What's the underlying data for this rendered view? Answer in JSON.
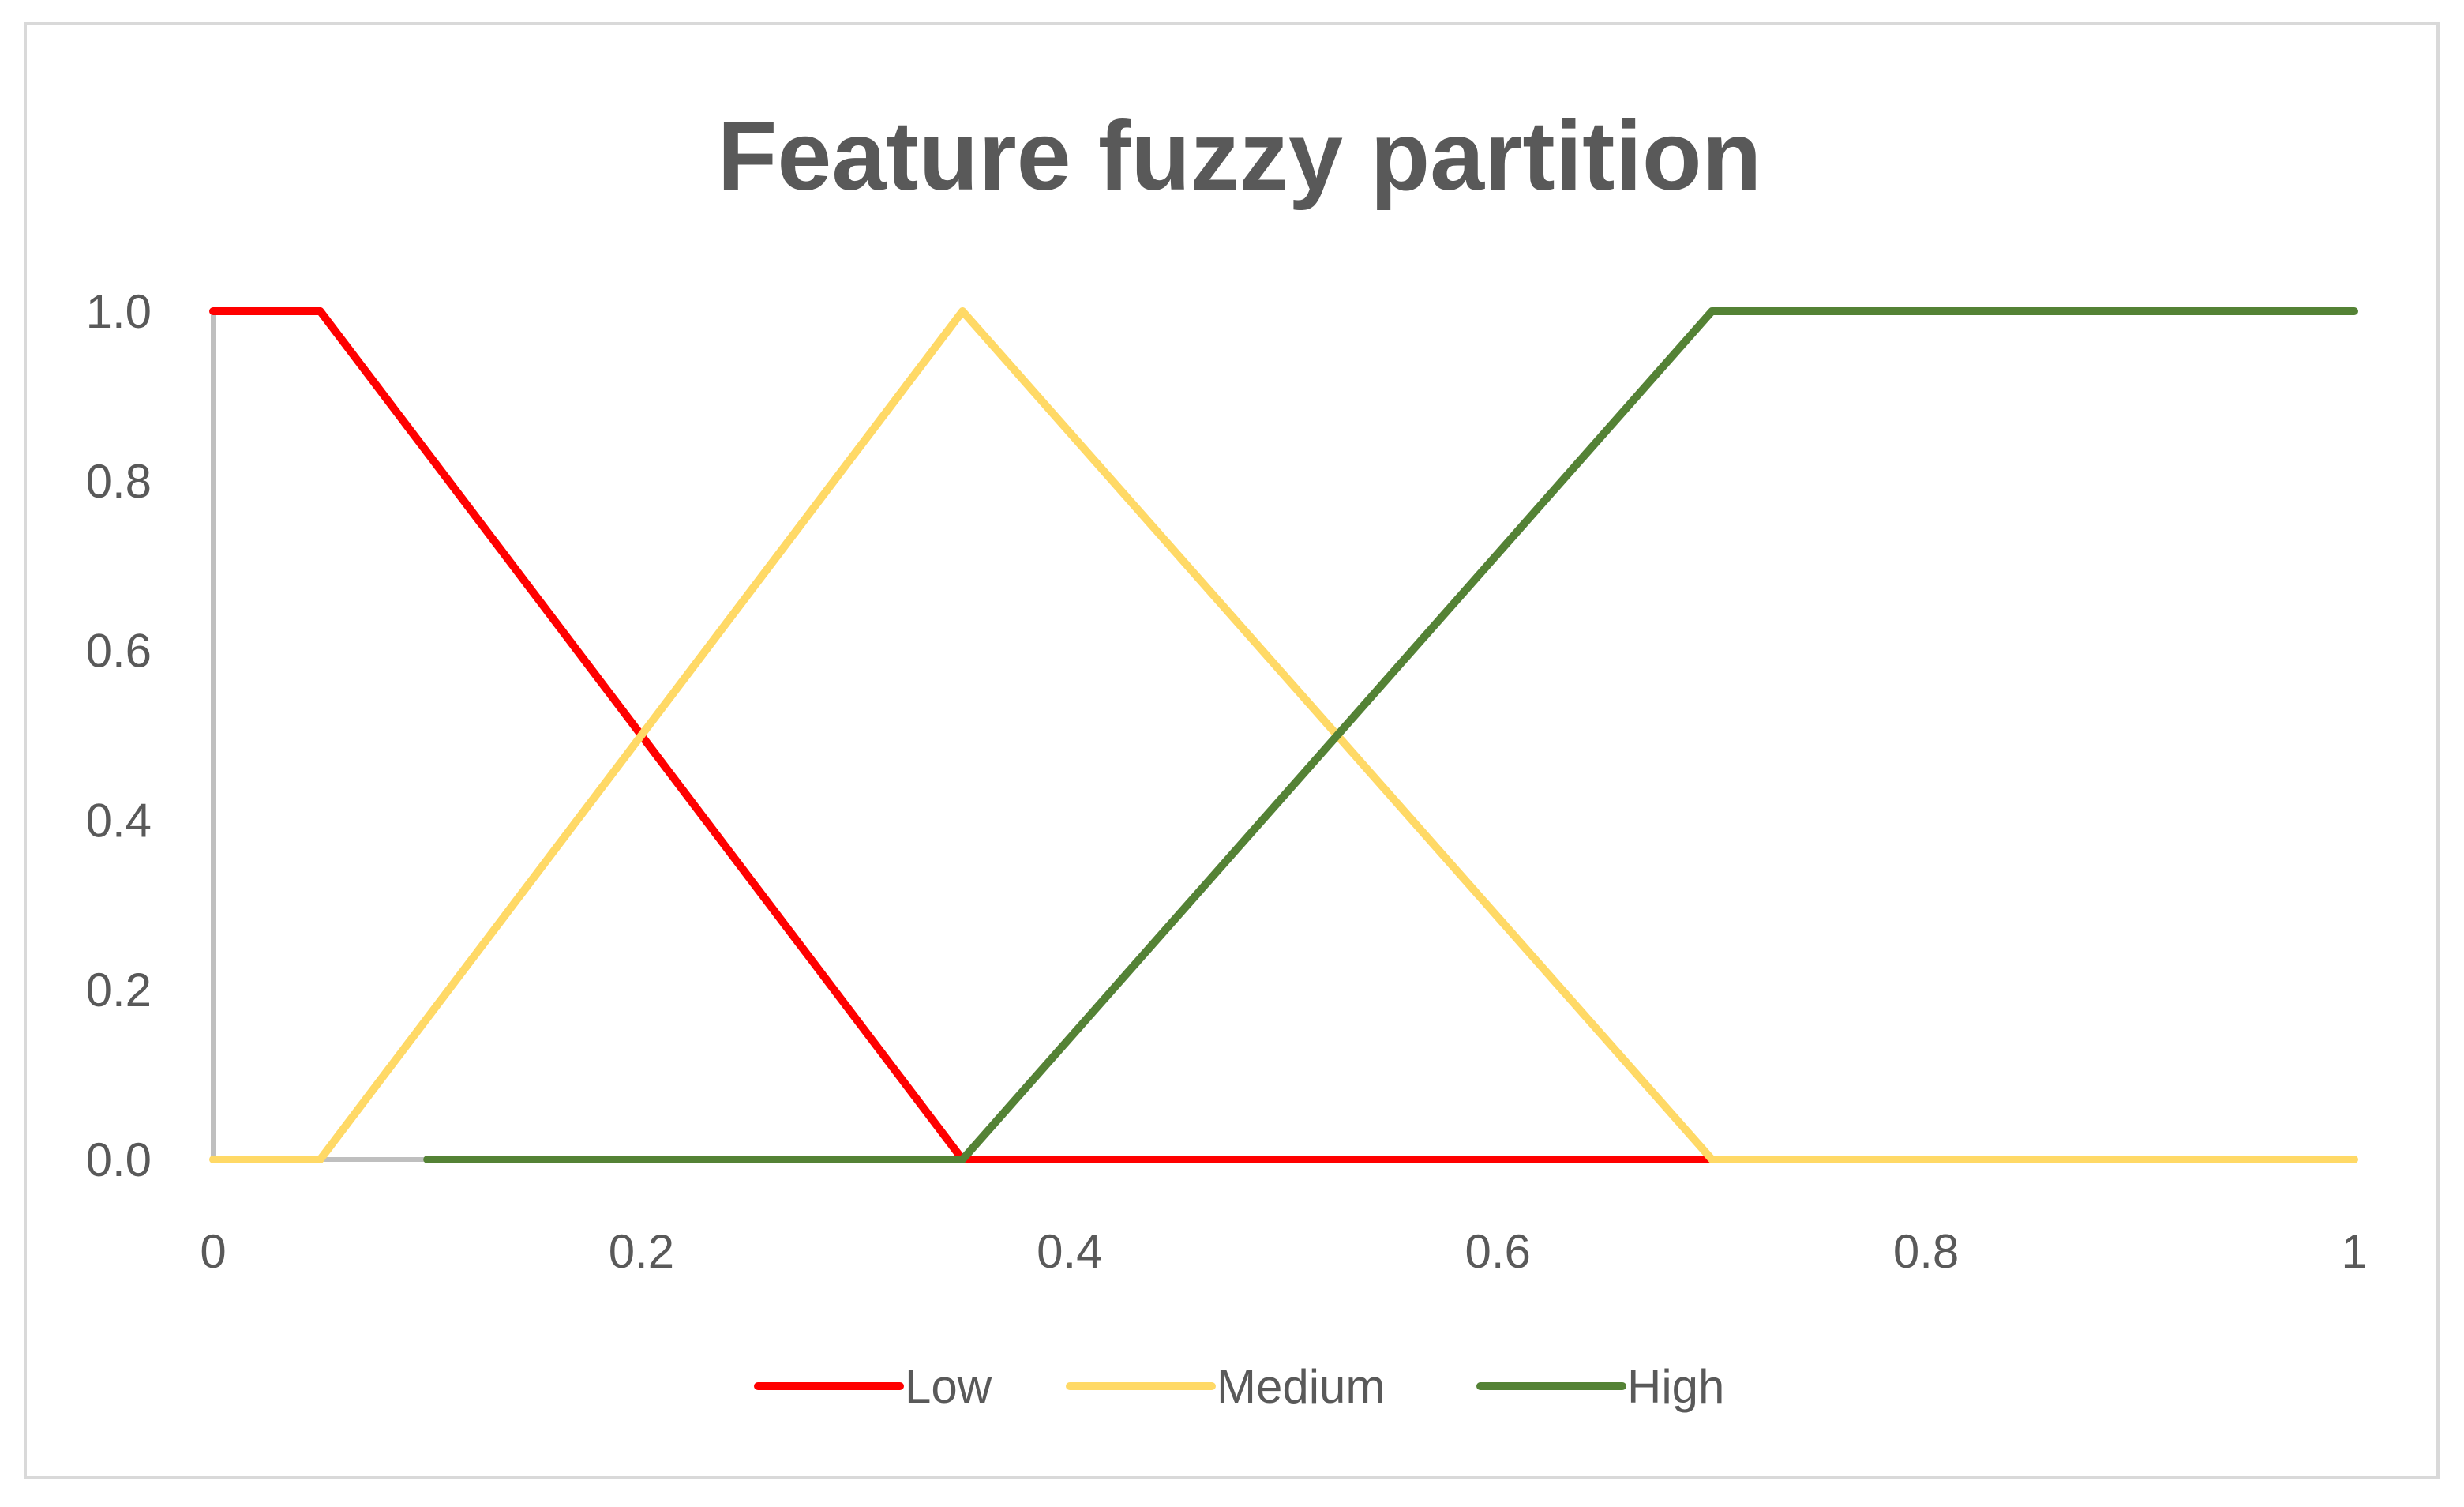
{
  "chart_data": {
    "type": "line",
    "title": "Feature fuzzy partition",
    "xlabel": "",
    "ylabel": "",
    "xlim": [
      0,
      1
    ],
    "ylim": [
      0,
      1
    ],
    "x_ticks": [
      "0",
      "0.2",
      "0.4",
      "0.6",
      "0.8",
      "1"
    ],
    "x_tick_values": [
      0,
      0.2,
      0.4,
      0.6,
      0.8,
      1
    ],
    "y_ticks": [
      "0.0",
      "0.2",
      "0.4",
      "0.6",
      "0.8",
      "1.0"
    ],
    "y_tick_values": [
      0,
      0.2,
      0.4,
      0.6,
      0.8,
      1.0
    ],
    "grid": false,
    "legend_position": "bottom",
    "axis_color": "#bfbfbf",
    "series": [
      {
        "name": "Low",
        "color": "#ff0000",
        "points": [
          [
            0,
            1
          ],
          [
            0.05,
            1
          ],
          [
            0.35,
            0
          ],
          [
            0.7,
            0
          ]
        ]
      },
      {
        "name": "Medium",
        "color": "#ffd966",
        "points": [
          [
            0,
            0
          ],
          [
            0.05,
            0
          ],
          [
            0.35,
            1
          ],
          [
            0.7,
            0
          ],
          [
            1,
            0
          ]
        ]
      },
      {
        "name": "High",
        "color": "#548235",
        "points": [
          [
            0.1,
            0
          ],
          [
            0.35,
            0
          ],
          [
            0.7,
            1
          ],
          [
            1,
            1
          ]
        ]
      }
    ]
  }
}
